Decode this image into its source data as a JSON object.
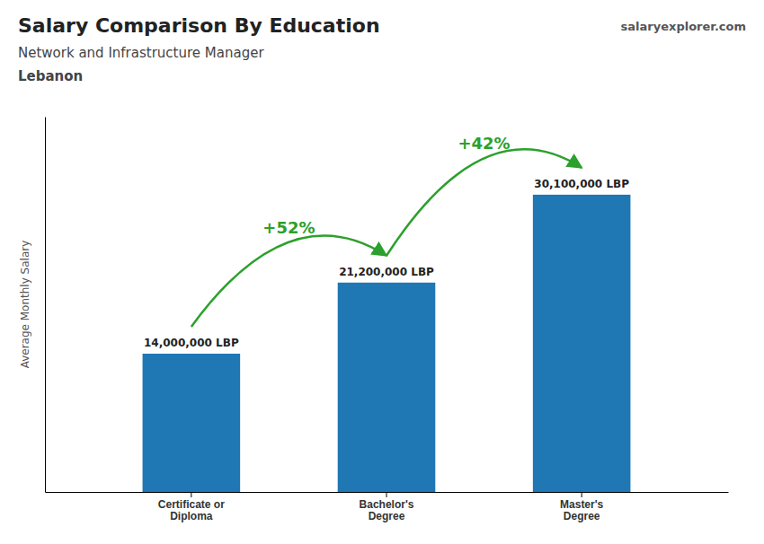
{
  "chart_data": {
    "type": "bar",
    "title": "Salary Comparison By Education",
    "subtitle": "Network and Infrastructure Manager",
    "country": "Lebanon",
    "website": [
      "salary",
      "explorer",
      ".com"
    ],
    "ylabel": "Average Monthly Salary",
    "categories": [
      "Certificate or\nDiploma",
      "Bachelor's\nDegree",
      "Master's\nDegree"
    ],
    "values": [
      14000000,
      21200000,
      30100000
    ],
    "value_labels": [
      "14,000,000 LBP",
      "21,200,000 LBP",
      "30,100,000 LBP"
    ],
    "data_labels": true,
    "annotations": [
      "+52%",
      "+42%"
    ],
    "ylim": [
      0,
      38000000
    ],
    "tick_labels": "x"
  }
}
